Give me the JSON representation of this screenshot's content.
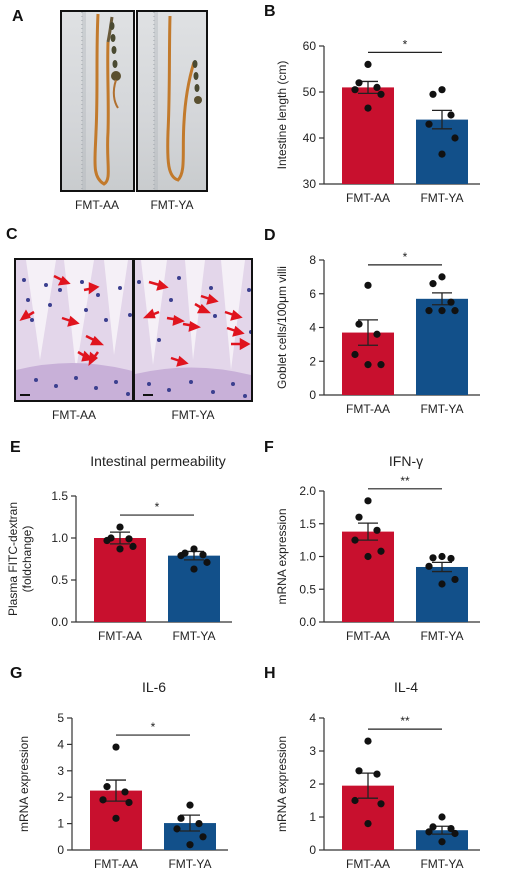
{
  "panels": {
    "A": {
      "letter": "A",
      "label_left": "FMT-AA",
      "label_right": "FMT-YA"
    },
    "C": {
      "letter": "C",
      "label_left": "FMT-AA",
      "label_right": "FMT-YA"
    }
  },
  "colors": {
    "aa": "#c8102e",
    "ya": "#12508a",
    "point": "#111111"
  },
  "chart_data": [
    {
      "id": "B",
      "letter": "B",
      "type": "bar",
      "title": "",
      "ylabel": "Intestine length (cm)",
      "categories": [
        "FMT-AA",
        "FMT-YA"
      ],
      "values": [
        51.0,
        44.0
      ],
      "errors": [
        1.3,
        2.0
      ],
      "ylim": [
        30,
        60
      ],
      "yticks": [
        30,
        40,
        50,
        60
      ],
      "tick_labels": [
        "30",
        "40",
        "50",
        "60"
      ],
      "points": [
        [
          56.0,
          52.0,
          51.0,
          50.5,
          49.5,
          46.5
        ],
        [
          50.5,
          49.5,
          45.0,
          43.0,
          40.0,
          36.5
        ]
      ],
      "significance": "*"
    },
    {
      "id": "D",
      "letter": "D",
      "type": "bar",
      "title": "",
      "ylabel": "Goblet cells/100μm villi",
      "categories": [
        "FMT-AA",
        "FMT-YA"
      ],
      "values": [
        3.7,
        5.7
      ],
      "errors": [
        0.75,
        0.35
      ],
      "ylim": [
        0,
        8
      ],
      "yticks": [
        0,
        2,
        4,
        6,
        8
      ],
      "tick_labels": [
        "0",
        "2",
        "4",
        "6",
        "8"
      ],
      "points": [
        [
          6.5,
          4.2,
          3.6,
          2.4,
          1.8,
          1.8
        ],
        [
          7.0,
          6.6,
          5.5,
          5.0,
          5.0,
          5.0
        ]
      ],
      "significance": "*"
    },
    {
      "id": "E",
      "letter": "E",
      "type": "bar",
      "title": "Intestinal permeability",
      "ylabel": "Plasma FITC-dextran\n(foldchange)",
      "categories": [
        "FMT-AA",
        "FMT-YA"
      ],
      "values": [
        1.0,
        0.79
      ],
      "errors": [
        0.07,
        0.05
      ],
      "ylim": [
        0.0,
        1.5
      ],
      "yticks": [
        0.0,
        0.5,
        1.0,
        1.5
      ],
      "tick_labels": [
        "0.0",
        "0.5",
        "1.0",
        "1.5"
      ],
      "points": [
        [
          1.13,
          1.0,
          0.99,
          0.97,
          0.9,
          0.87
        ],
        [
          0.87,
          0.82,
          0.8,
          0.79,
          0.71,
          0.63
        ]
      ],
      "significance": "*"
    },
    {
      "id": "F",
      "letter": "F",
      "type": "bar",
      "title": "IFN-γ",
      "ylabel": "mRNA expression",
      "categories": [
        "FMT-AA",
        "FMT-YA"
      ],
      "values": [
        1.38,
        0.84
      ],
      "errors": [
        0.13,
        0.07
      ],
      "ylim": [
        0.0,
        2.0
      ],
      "yticks": [
        0.0,
        0.5,
        1.0,
        1.5,
        2.0
      ],
      "tick_labels": [
        "0.0",
        "0.5",
        "1.0",
        "1.5",
        "2.0"
      ],
      "points": [
        [
          1.85,
          1.6,
          1.4,
          1.25,
          1.08,
          1.0
        ],
        [
          1.0,
          0.98,
          0.97,
          0.85,
          0.65,
          0.58
        ]
      ],
      "significance": "**"
    },
    {
      "id": "G",
      "letter": "G",
      "type": "bar",
      "title": "IL-6",
      "ylabel": "mRNA expression",
      "categories": [
        "FMT-AA",
        "FMT-YA"
      ],
      "values": [
        2.25,
        1.02
      ],
      "errors": [
        0.4,
        0.3
      ],
      "ylim": [
        0,
        5
      ],
      "yticks": [
        0,
        1,
        2,
        3,
        4,
        5
      ],
      "tick_labels": [
        "0",
        "1",
        "2",
        "3",
        "4",
        "5"
      ],
      "points": [
        [
          3.9,
          2.4,
          2.2,
          1.9,
          1.8,
          1.2
        ],
        [
          1.7,
          1.2,
          1.0,
          0.8,
          0.5,
          0.2
        ]
      ],
      "significance": "*"
    },
    {
      "id": "H",
      "letter": "H",
      "type": "bar",
      "title": "IL-4",
      "ylabel": "mRNA expression",
      "categories": [
        "FMT-AA",
        "FMT-YA"
      ],
      "values": [
        1.95,
        0.6
      ],
      "errors": [
        0.38,
        0.12
      ],
      "ylim": [
        0,
        4
      ],
      "yticks": [
        0,
        1,
        2,
        3,
        4
      ],
      "tick_labels": [
        "0",
        "1",
        "2",
        "3",
        "4"
      ],
      "points": [
        [
          3.3,
          2.4,
          2.3,
          1.5,
          1.4,
          0.8
        ],
        [
          1.0,
          0.7,
          0.65,
          0.55,
          0.5,
          0.25
        ]
      ],
      "significance": "**"
    }
  ]
}
